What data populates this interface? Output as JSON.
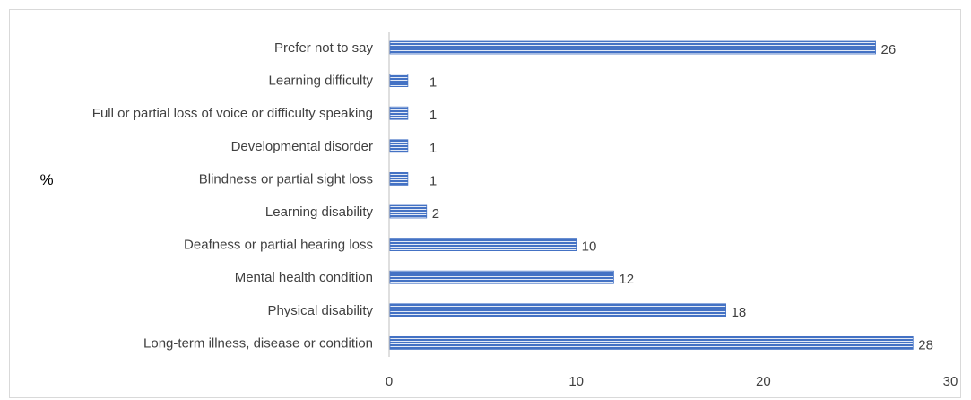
{
  "chart_data": {
    "type": "bar",
    "orientation": "horizontal",
    "title": "",
    "xlabel": "",
    "ylabel": "%",
    "categories": [
      "Prefer not to say",
      "Learning difficulty",
      "Full or partial loss of voice or difficulty speaking",
      "Developmental disorder",
      "Blindness or partial sight loss",
      "Learning disability",
      "Deafness or partial hearing loss",
      "Mental health condition",
      "Physical disability",
      "Long-term illness, disease or condition"
    ],
    "values": [
      26,
      1,
      1,
      1,
      1,
      2,
      10,
      12,
      18,
      28
    ],
    "xlim": [
      0,
      30
    ],
    "xticks": [
      0,
      10,
      20,
      30
    ],
    "data_labels": true,
    "grid": false,
    "legend": "none",
    "bar_color": "#4472c4",
    "bar_stripe_color": "#ffffff"
  }
}
